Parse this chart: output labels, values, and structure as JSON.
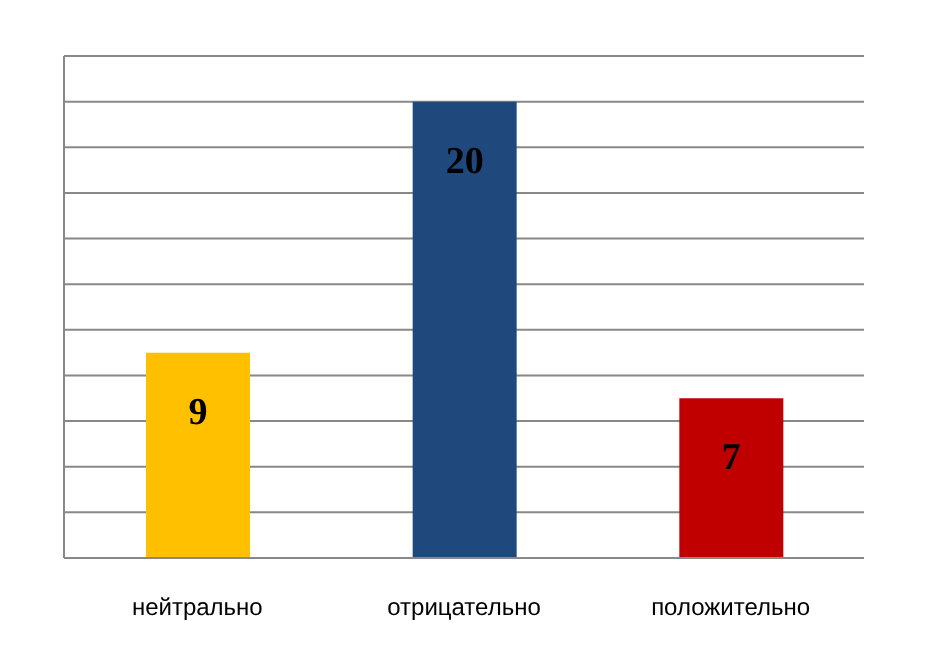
{
  "chart_data": {
    "type": "bar",
    "categories": [
      "нейтрально",
      "отрицательно",
      "положительно"
    ],
    "values": [
      9,
      20,
      7
    ],
    "colors": [
      "#ffc000",
      "#1f497d",
      "#c00000"
    ],
    "ylim": [
      0,
      22
    ],
    "yticks": [
      {
        "value": 0,
        "label": null
      },
      {
        "value": 2,
        "label": null
      },
      {
        "value": 4,
        "label": null
      },
      {
        "value": 6,
        "label": null
      },
      {
        "value": 8,
        "label": null
      },
      {
        "value": 10,
        "label": null
      },
      {
        "value": 12,
        "label": null
      },
      {
        "value": 14,
        "label": null
      },
      {
        "value": 16,
        "label": null
      },
      {
        "value": 18,
        "label": null
      },
      {
        "value": 20,
        "label": null
      },
      {
        "value": 22,
        "label": null
      }
    ],
    "grid": "y",
    "tick_labels": "x",
    "data_labels": true,
    "legend": false
  }
}
